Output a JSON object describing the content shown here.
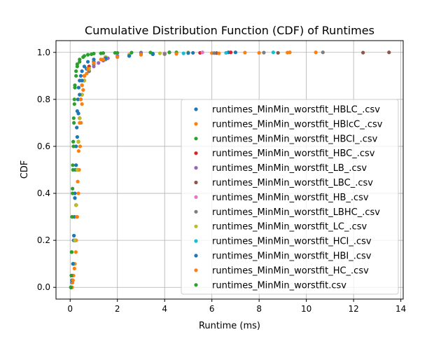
{
  "chart_data": {
    "type": "scatter",
    "title": "Cumulative Distribution Function (CDF) of Runtimes",
    "xlabel": "Runtime (ms)",
    "ylabel": "CDF",
    "xlim": [
      -0.6,
      14.1
    ],
    "ylim": [
      -0.05,
      1.05
    ],
    "x_ticks": [
      0,
      2,
      4,
      6,
      8,
      10,
      12,
      14
    ],
    "y_ticks": [
      0.0,
      0.2,
      0.4,
      0.6,
      0.8,
      1.0
    ],
    "grid": true,
    "legend_position": "lower right",
    "series": [
      {
        "name": "runtimes_MinMin_worstfit_HBLC_.csv",
        "color": "#1f77b4",
        "x": [
          0.05,
          0.08,
          0.1,
          0.12,
          0.15,
          0.18,
          0.2,
          0.22,
          0.25,
          0.28,
          0.3,
          0.33,
          0.36,
          0.4,
          0.45,
          0.5,
          0.6,
          0.75,
          1.0,
          1.5,
          2.5,
          3.5,
          5.2,
          6.7
        ],
        "y": [
          0.0,
          0.02,
          0.05,
          0.1,
          0.2,
          0.3,
          0.4,
          0.5,
          0.6,
          0.68,
          0.75,
          0.8,
          0.85,
          0.88,
          0.9,
          0.92,
          0.94,
          0.96,
          0.97,
          0.98,
          0.99,
          0.995,
          0.998,
          1.0
        ]
      },
      {
        "name": "runtimes_MinMin_worstfit_HBlcC_.csv",
        "color": "#ff7f0e",
        "x": [
          0.06,
          0.1,
          0.14,
          0.2,
          0.25,
          0.3,
          0.35,
          0.38,
          0.42,
          0.46,
          0.5,
          0.55,
          0.6,
          0.7,
          0.8,
          1.0,
          1.3,
          2.0,
          3.0,
          4.5,
          6.0,
          7.4,
          9.3
        ],
        "y": [
          0.0,
          0.02,
          0.05,
          0.1,
          0.2,
          0.3,
          0.4,
          0.5,
          0.6,
          0.7,
          0.78,
          0.84,
          0.88,
          0.91,
          0.93,
          0.95,
          0.97,
          0.98,
          0.99,
          0.995,
          0.997,
          0.999,
          1.0
        ]
      },
      {
        "name": "runtimes_MinMin_worstfit_HBCI_.csv",
        "color": "#2ca02c",
        "x": [
          0.03,
          0.05,
          0.07,
          0.09,
          0.1,
          0.12,
          0.14,
          0.16,
          0.18,
          0.2,
          0.25,
          0.3,
          0.4,
          0.55,
          0.75,
          1.0,
          1.4,
          2.0,
          3.0,
          4.5
        ],
        "y": [
          0.0,
          0.05,
          0.15,
          0.3,
          0.4,
          0.5,
          0.6,
          0.7,
          0.78,
          0.85,
          0.9,
          0.94,
          0.96,
          0.98,
          0.99,
          0.995,
          0.997,
          0.998,
          0.999,
          1.0
        ]
      },
      {
        "name": "runtimes_MinMin_worstfit_HBC_.csv",
        "color": "#d62728",
        "x": [
          0.06,
          0.1,
          0.15,
          0.2,
          0.25,
          0.3,
          0.35,
          0.4,
          0.45,
          0.5,
          0.6,
          0.8,
          1.0,
          1.5,
          2.5,
          4.0,
          5.5,
          6.8
        ],
        "y": [
          0.0,
          0.03,
          0.1,
          0.2,
          0.35,
          0.5,
          0.62,
          0.72,
          0.8,
          0.86,
          0.9,
          0.94,
          0.96,
          0.98,
          0.99,
          0.995,
          0.998,
          1.0
        ]
      },
      {
        "name": "runtimes_MinMin_worstfit_LB_.csv",
        "color": "#9467bd",
        "x": [
          0.06,
          0.1,
          0.15,
          0.2,
          0.25,
          0.3,
          0.35,
          0.4,
          0.5,
          0.6,
          0.8,
          1.0,
          1.2,
          1.4,
          1.6,
          2.0,
          3.0,
          4.2
        ],
        "y": [
          0.0,
          0.03,
          0.1,
          0.2,
          0.35,
          0.5,
          0.62,
          0.72,
          0.82,
          0.88,
          0.92,
          0.94,
          0.955,
          0.965,
          0.975,
          0.985,
          0.995,
          1.0
        ]
      },
      {
        "name": "runtimes_MinMin_worstfit_LBC_.csv",
        "color": "#8c564b",
        "x": [
          0.06,
          0.1,
          0.15,
          0.2,
          0.25,
          0.3,
          0.35,
          0.4,
          0.5,
          0.6,
          0.8,
          1.0,
          1.5,
          2.5,
          4.0,
          6.2,
          8.8,
          12.4,
          13.5
        ],
        "y": [
          0.0,
          0.03,
          0.1,
          0.2,
          0.35,
          0.5,
          0.62,
          0.72,
          0.82,
          0.88,
          0.92,
          0.95,
          0.97,
          0.985,
          0.993,
          0.997,
          0.998,
          0.999,
          1.0
        ]
      },
      {
        "name": "runtimes_MinMin_worstfit_HB_.csv",
        "color": "#e377c2",
        "x": [
          0.06,
          0.1,
          0.15,
          0.2,
          0.25,
          0.3,
          0.35,
          0.4,
          0.5,
          0.6,
          0.8,
          1.0,
          1.5,
          2.5,
          4.0,
          5.6
        ],
        "y": [
          0.0,
          0.03,
          0.1,
          0.2,
          0.35,
          0.5,
          0.62,
          0.72,
          0.82,
          0.88,
          0.93,
          0.96,
          0.98,
          0.99,
          0.996,
          1.0
        ]
      },
      {
        "name": "runtimes_MinMin_worstfit_LBHC_.csv",
        "color": "#7f7f7f",
        "x": [
          0.06,
          0.1,
          0.15,
          0.2,
          0.25,
          0.3,
          0.35,
          0.4,
          0.5,
          0.6,
          0.8,
          1.0,
          1.5,
          2.5,
          4.0,
          6.1,
          8.2,
          10.7
        ],
        "y": [
          0.0,
          0.03,
          0.1,
          0.2,
          0.35,
          0.5,
          0.62,
          0.72,
          0.82,
          0.88,
          0.92,
          0.95,
          0.97,
          0.985,
          0.993,
          0.997,
          0.999,
          1.0
        ]
      },
      {
        "name": "runtimes_MinMin_worstfit_LC_.csv",
        "color": "#bcbd22",
        "x": [
          0.06,
          0.1,
          0.15,
          0.2,
          0.25,
          0.3,
          0.35,
          0.4,
          0.5,
          0.6,
          0.8,
          1.0,
          1.5,
          2.5,
          3.8,
          5.0
        ],
        "y": [
          0.0,
          0.03,
          0.1,
          0.2,
          0.35,
          0.5,
          0.62,
          0.72,
          0.82,
          0.88,
          0.93,
          0.96,
          0.98,
          0.99,
          0.996,
          1.0
        ]
      },
      {
        "name": "runtimes_MinMin_worstfit_HCI_.csv",
        "color": "#17becf",
        "x": [
          0.05,
          0.08,
          0.12,
          0.16,
          0.2,
          0.25,
          0.3,
          0.35,
          0.4,
          0.5,
          0.7,
          1.0,
          1.5,
          2.5,
          3.5,
          4.8,
          6.6,
          8.6
        ],
        "y": [
          0.0,
          0.03,
          0.1,
          0.22,
          0.38,
          0.52,
          0.64,
          0.74,
          0.82,
          0.88,
          0.93,
          0.96,
          0.975,
          0.985,
          0.992,
          0.996,
          0.998,
          1.0
        ]
      },
      {
        "name": "runtimes_MinMin_worstfit_HBI_.csv",
        "color": "#1f77b4",
        "x": [
          0.05,
          0.08,
          0.12,
          0.16,
          0.2,
          0.25,
          0.3,
          0.35,
          0.4,
          0.5,
          0.7,
          1.0,
          1.5,
          2.5,
          3.5,
          5.0,
          7.0
        ],
        "y": [
          0.0,
          0.03,
          0.1,
          0.22,
          0.38,
          0.52,
          0.64,
          0.74,
          0.82,
          0.88,
          0.93,
          0.96,
          0.975,
          0.985,
          0.992,
          0.997,
          1.0
        ]
      },
      {
        "name": "runtimes_MinMin_worstfit_HC_.csv",
        "color": "#ff7f0e",
        "x": [
          0.08,
          0.12,
          0.18,
          0.24,
          0.28,
          0.32,
          0.36,
          0.4,
          0.45,
          0.5,
          0.6,
          0.75,
          1.0,
          1.4,
          2.0,
          3.0,
          4.5,
          6.3,
          8.0,
          9.2,
          10.4
        ],
        "y": [
          0.0,
          0.03,
          0.08,
          0.15,
          0.3,
          0.45,
          0.58,
          0.7,
          0.8,
          0.86,
          0.9,
          0.93,
          0.955,
          0.97,
          0.98,
          0.99,
          0.994,
          0.996,
          0.998,
          0.999,
          1.0
        ]
      },
      {
        "name": "runtimes_MinMin_worstfit.csv",
        "color": "#2ca02c",
        "x": [
          0.03,
          0.05,
          0.06,
          0.08,
          0.1,
          0.11,
          0.13,
          0.15,
          0.18,
          0.2,
          0.25,
          0.3,
          0.4,
          0.6,
          0.9,
          1.3,
          1.9,
          2.6,
          3.4,
          4.2
        ],
        "y": [
          0.0,
          0.05,
          0.15,
          0.3,
          0.42,
          0.52,
          0.62,
          0.72,
          0.8,
          0.86,
          0.92,
          0.95,
          0.97,
          0.985,
          0.992,
          0.996,
          0.998,
          0.999,
          0.9995,
          1.0
        ]
      }
    ]
  }
}
